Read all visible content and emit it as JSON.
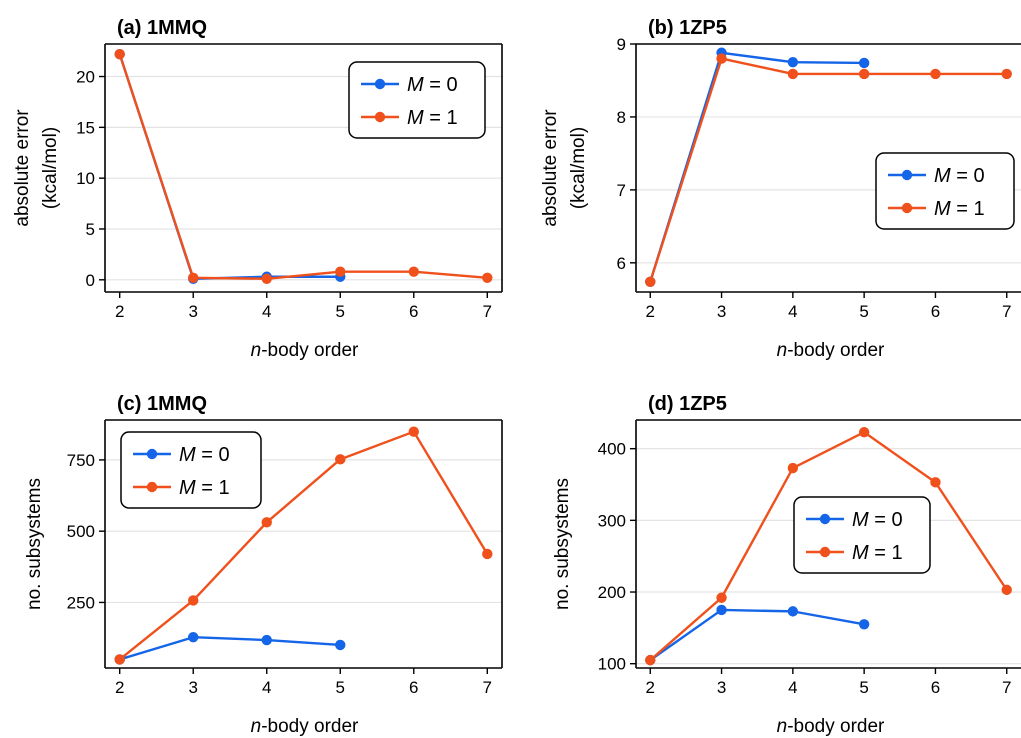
{
  "chart_data": [
    {
      "type": "line",
      "title": "(a) 1MMQ",
      "xlabel_italic": "n",
      "xlabel_rest": "-body order",
      "ylabel_lines": [
        "absolute error",
        "(kcal/mol)"
      ],
      "x_ticks": [
        2,
        3,
        4,
        5,
        6,
        7
      ],
      "xlim": [
        1.8,
        7.2
      ],
      "y_ticks": [
        0,
        5,
        10,
        15,
        20
      ],
      "ylim": [
        -1.2,
        23.2
      ],
      "grid": "horizontal",
      "legend_position": "top-right",
      "series": [
        {
          "name_italic": "M",
          "name_rest": " = 0",
          "color": "#1565e8",
          "x": [
            2,
            3,
            4,
            5
          ],
          "y": [
            22.2,
            0.1,
            0.3,
            0.3
          ]
        },
        {
          "name_italic": "M",
          "name_rest": " = 1",
          "color": "#f0501c",
          "x": [
            2,
            3,
            4,
            5,
            6,
            7
          ],
          "y": [
            22.2,
            0.2,
            0.1,
            0.8,
            0.8,
            0.2
          ]
        }
      ]
    },
    {
      "type": "line",
      "title": "(b) 1ZP5",
      "xlabel_italic": "n",
      "xlabel_rest": "-body order",
      "ylabel_lines": [
        "absolute error",
        "(kcal/mol)"
      ],
      "x_ticks": [
        2,
        3,
        4,
        5,
        6,
        7
      ],
      "xlim": [
        1.8,
        7.2
      ],
      "y_ticks": [
        6,
        7,
        8,
        9
      ],
      "ylim": [
        5.6,
        9.0
      ],
      "grid": "horizontal",
      "legend_position": "center-right",
      "series": [
        {
          "name_italic": "M",
          "name_rest": " = 0",
          "color": "#1565e8",
          "x": [
            2,
            3,
            4,
            5
          ],
          "y": [
            5.74,
            8.88,
            8.75,
            8.74
          ]
        },
        {
          "name_italic": "M",
          "name_rest": " = 1",
          "color": "#f0501c",
          "x": [
            2,
            3,
            4,
            5,
            6,
            7
          ],
          "y": [
            5.74,
            8.8,
            8.59,
            8.59,
            8.59,
            8.59
          ]
        }
      ]
    },
    {
      "type": "line",
      "title": "(c) 1MMQ",
      "xlabel_italic": "n",
      "xlabel_rest": "-body order",
      "ylabel_lines": [
        "no. subsystems"
      ],
      "x_ticks": [
        2,
        3,
        4,
        5,
        6,
        7
      ],
      "xlim": [
        1.8,
        7.2
      ],
      "y_ticks": [
        250,
        500,
        750
      ],
      "ylim": [
        20,
        890
      ],
      "grid": "horizontal",
      "legend_position": "top-left",
      "series": [
        {
          "name_italic": "M",
          "name_rest": " = 0",
          "color": "#1565e8",
          "x": [
            2,
            3,
            4,
            5
          ],
          "y": [
            50,
            128,
            118,
            101
          ]
        },
        {
          "name_italic": "M",
          "name_rest": " = 1",
          "color": "#f0501c",
          "x": [
            2,
            3,
            4,
            5,
            6,
            7
          ],
          "y": [
            50,
            257,
            531,
            752,
            849,
            420
          ]
        }
      ]
    },
    {
      "type": "line",
      "title": "(d) 1ZP5",
      "xlabel_italic": "n",
      "xlabel_rest": "-body order",
      "ylabel_lines": [
        "no. subsystems"
      ],
      "x_ticks": [
        2,
        3,
        4,
        5,
        6,
        7
      ],
      "xlim": [
        1.8,
        7.2
      ],
      "y_ticks": [
        100,
        200,
        300,
        400
      ],
      "ylim": [
        94,
        440
      ],
      "grid": "horizontal",
      "legend_position": "center",
      "series": [
        {
          "name_italic": "M",
          "name_rest": " = 0",
          "color": "#1565e8",
          "x": [
            2,
            3,
            4,
            5
          ],
          "y": [
            105,
            175,
            173,
            155
          ]
        },
        {
          "name_italic": "M",
          "name_rest": " = 1",
          "color": "#f0501c",
          "x": [
            2,
            3,
            4,
            5,
            6,
            7
          ],
          "y": [
            105,
            192,
            373,
            423,
            353,
            203
          ]
        }
      ]
    }
  ]
}
